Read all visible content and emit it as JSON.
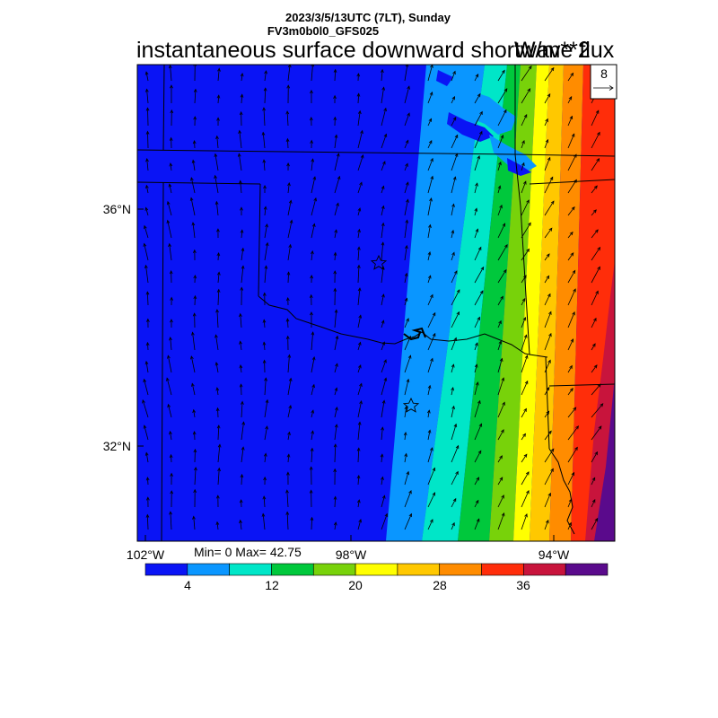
{
  "header": {
    "date_line": "2023/3/5/13UTC (7LT), Sunday",
    "model_line": "FV3m0b0l0_GFS025",
    "title": "instantaneous surface downward shortwave flux",
    "units": "W/m**2"
  },
  "stats": {
    "text": "Min= 0 Max= 42.75",
    "min": 0,
    "max": 42.75
  },
  "vector_reference": {
    "value": "8"
  },
  "axes": {
    "lat_labels": [
      "36°N",
      "32°N"
    ],
    "lon_labels": [
      "102°W",
      "98°W",
      "94°W"
    ]
  },
  "colorbar": {
    "colors": [
      "#0a14f5",
      "#0a96ff",
      "#00e6c8",
      "#00c83c",
      "#78d20a",
      "#ffff00",
      "#ffc800",
      "#ff8c00",
      "#ff2d0a",
      "#c8143c",
      "#5a0a8c"
    ],
    "tick_labels": [
      "4",
      "12",
      "20",
      "28",
      "36"
    ]
  },
  "markers": [
    {
      "name": "station-star-north",
      "icon": "star-icon"
    },
    {
      "name": "station-star-south",
      "icon": "star-icon"
    }
  ]
}
